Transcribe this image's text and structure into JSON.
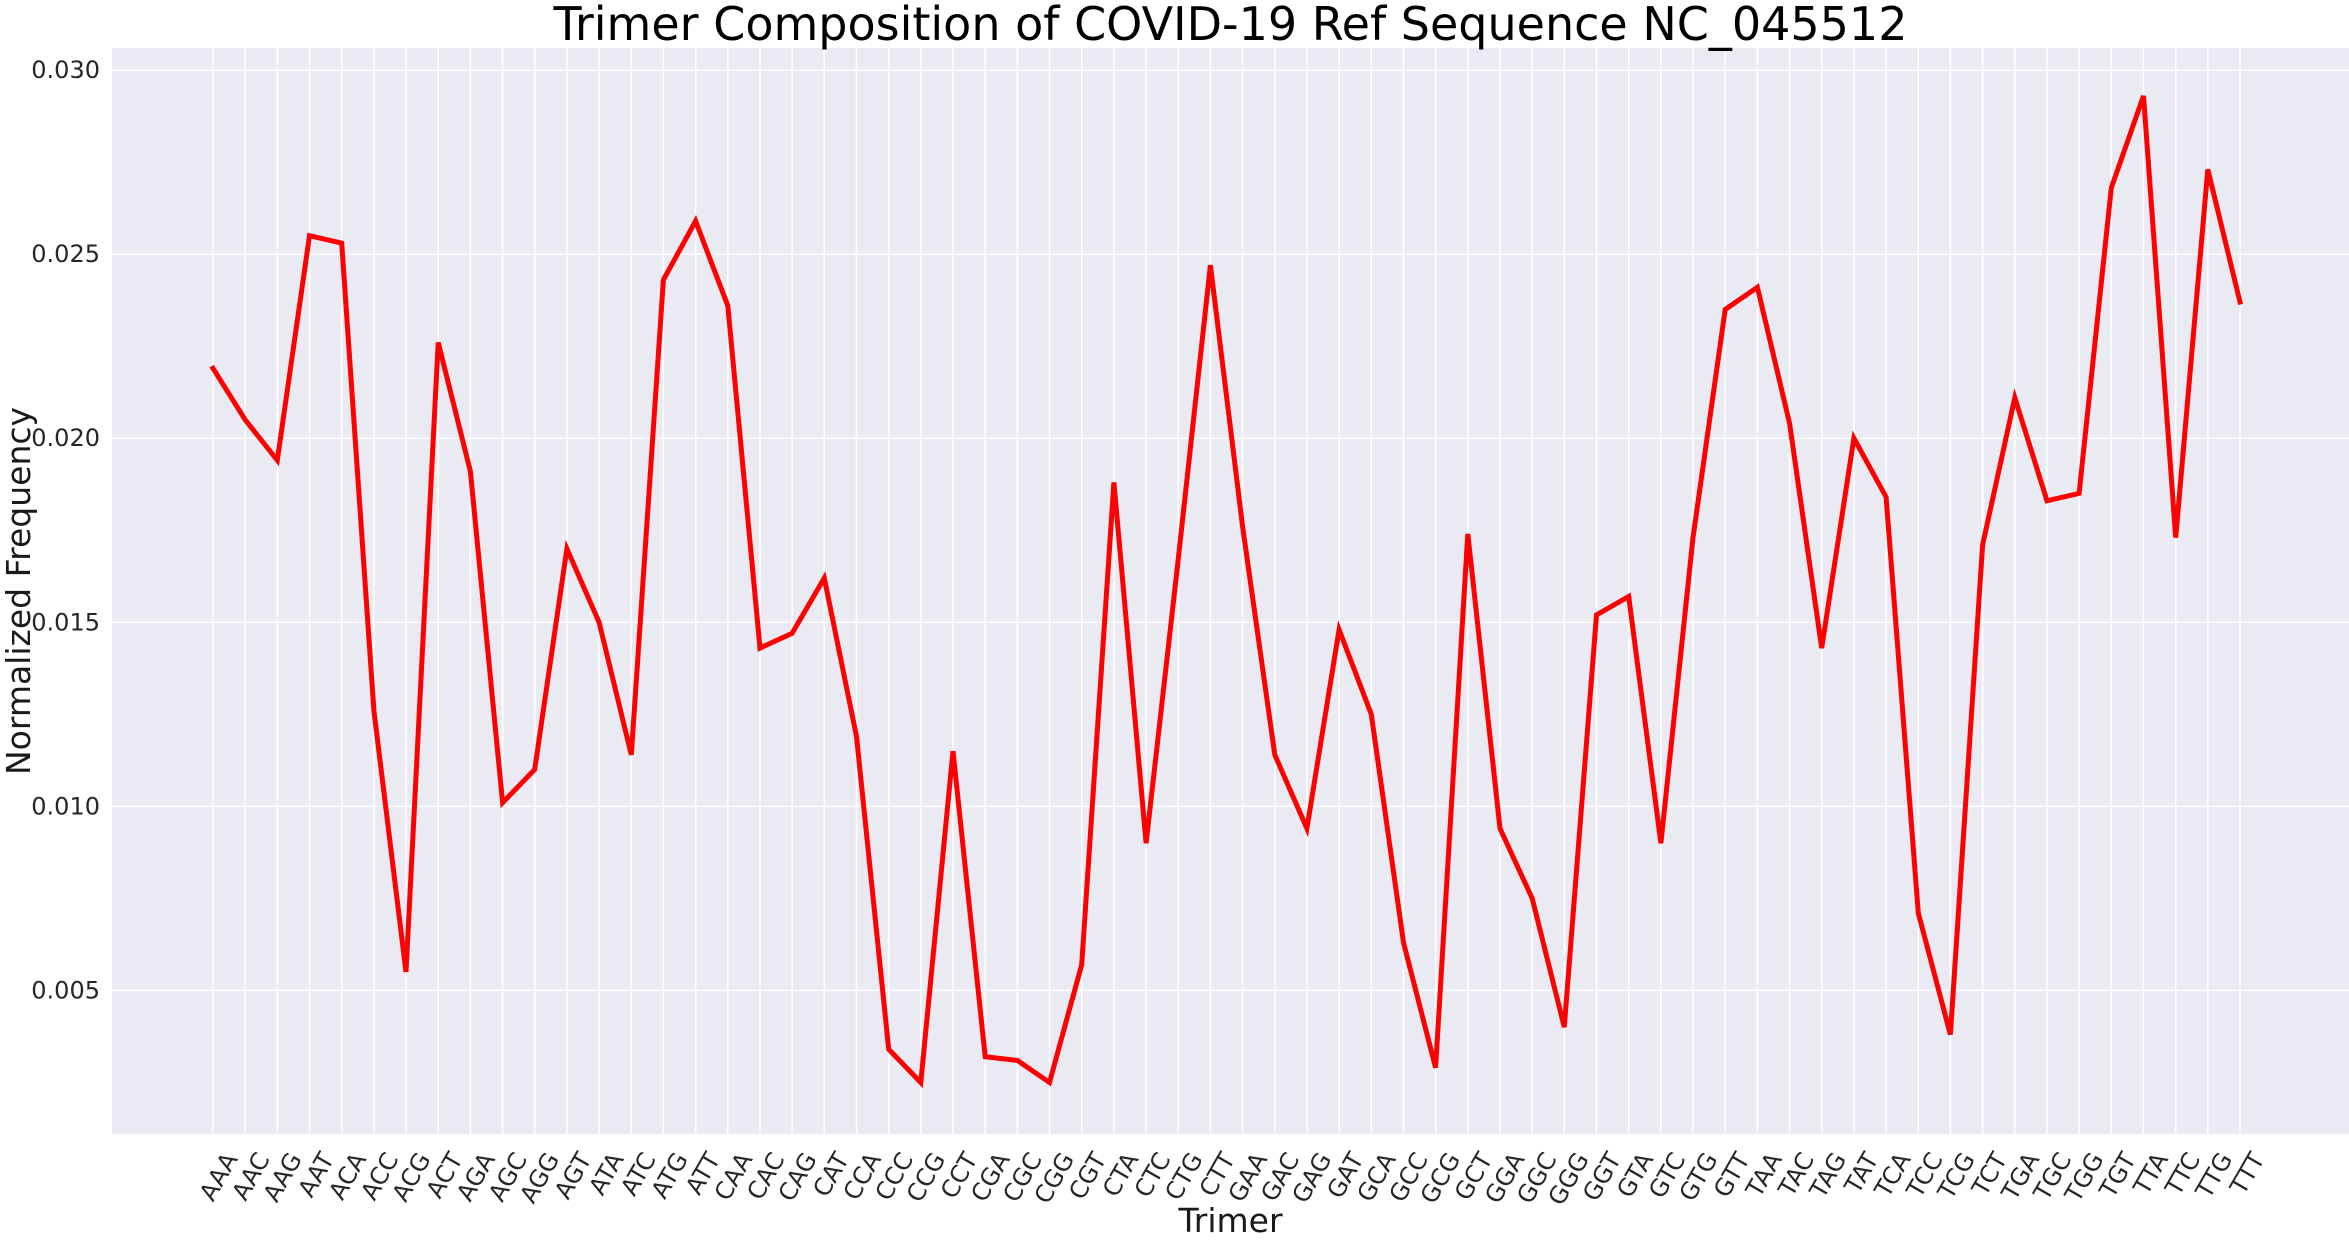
{
  "chart_data": {
    "type": "line",
    "title": "Trimer Composition of COVID-19 Ref Sequence NC_045512",
    "xlabel": "Trimer",
    "ylabel": "Normalized Frequency",
    "ylim": [
      0.0011,
      0.0306
    ],
    "yticks": [
      "0.005",
      "0.010",
      "0.015",
      "0.020",
      "0.025",
      "0.030"
    ],
    "grid": true,
    "legend": "none",
    "style": {
      "line_color": "#ff0000",
      "background": "#eaeaf2",
      "grid_color": "#ffffff"
    },
    "categories": [
      "AAA",
      "AAC",
      "AAG",
      "AAT",
      "ACA",
      "ACC",
      "ACG",
      "ACT",
      "AGA",
      "AGC",
      "AGG",
      "AGT",
      "ATA",
      "ATC",
      "ATG",
      "ATT",
      "CAA",
      "CAC",
      "CAG",
      "CAT",
      "CCA",
      "CCC",
      "CCG",
      "CCT",
      "CGA",
      "CGC",
      "CGG",
      "CGT",
      "CTA",
      "CTC",
      "CTG",
      "CTT",
      "GAA",
      "GAC",
      "GAG",
      "GAT",
      "GCA",
      "GCC",
      "GCG",
      "GCT",
      "GGA",
      "GGC",
      "GGG",
      "GGT",
      "GTA",
      "GTC",
      "GTG",
      "GTT",
      "TAA",
      "TAC",
      "TAG",
      "TAT",
      "TCA",
      "TCC",
      "TCG",
      "TCT",
      "TGA",
      "TGC",
      "TGG",
      "TGT",
      "TTA",
      "TTC",
      "TTG",
      "TTT"
    ],
    "series": [
      {
        "values": [
          0.0219,
          0.0205,
          0.0194,
          0.0255,
          0.0253,
          0.0126,
          0.0055,
          0.0226,
          0.0191,
          0.0101,
          0.011,
          0.017,
          0.015,
          0.0114,
          0.0243,
          0.0259,
          0.0236,
          0.0143,
          0.0147,
          0.0162,
          0.0119,
          0.0034,
          0.0025,
          0.0115,
          0.0032,
          0.0031,
          0.0025,
          0.0057,
          0.0188,
          0.009,
          0.0167,
          0.0247,
          0.0176,
          0.0114,
          0.0094,
          0.0148,
          0.0125,
          0.0063,
          0.0029,
          0.0174,
          0.0094,
          0.0075,
          0.004,
          0.0152,
          0.0157,
          0.009,
          0.0173,
          0.0235,
          0.0241,
          0.0204,
          0.0143,
          0.02,
          0.0184,
          0.0071,
          0.0038,
          0.0171,
          0.0211,
          0.0183,
          0.0185,
          0.0268,
          0.0293,
          0.0173,
          0.0273,
          0.0237
        ]
      }
    ]
  }
}
